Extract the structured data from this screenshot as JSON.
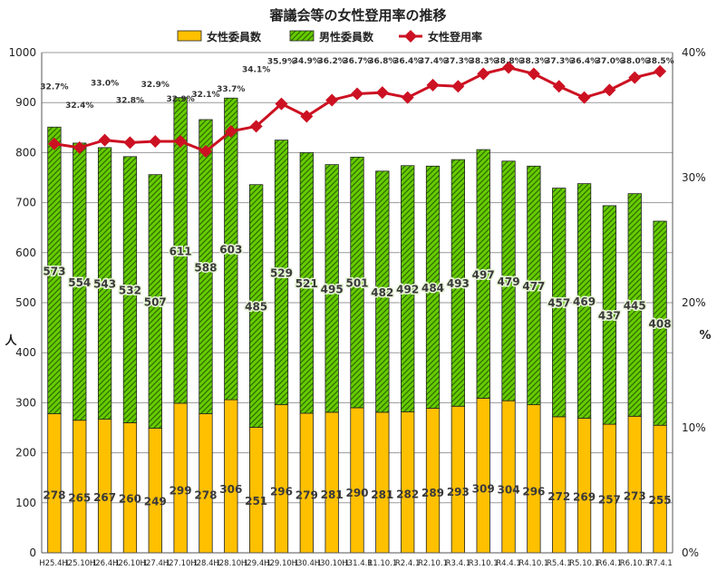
{
  "chart_data": {
    "type": "bar",
    "title": "審議会等の女性登用率の推移",
    "ylabel_left": "人",
    "ylabel_right": "%",
    "ylim_left": [
      0,
      1000
    ],
    "ylim_right": [
      0,
      40
    ],
    "yticks_left": [
      "0",
      "100",
      "200",
      "300",
      "400",
      "500",
      "600",
      "700",
      "800",
      "900",
      "1000"
    ],
    "yticks_right": [
      "0%",
      "10%",
      "20%",
      "30%",
      "40%"
    ],
    "grid": true,
    "stacked": true,
    "legend_position": "top",
    "categories": [
      "H25.4.1",
      "H25.10.1",
      "H26.4.1",
      "H26.10.1",
      "H27.4.1",
      "H27.10.1",
      "H28.4.1",
      "H28.10.1",
      "H29.4.1",
      "H29.10.1",
      "H30.4.1",
      "H30.10.1",
      "H31.4.1",
      "R1.10.1",
      "R2.4.1",
      "R2.10.1",
      "R3.4.1",
      "R3.10.1",
      "R4.4.1",
      "R4.10.1",
      "R5.4.1",
      "R5.10.1",
      "R6.4.1",
      "R6.10.1",
      "R7.4.1"
    ],
    "series": [
      {
        "name": "女性委員数",
        "kind": "bar",
        "color": "#FFC000",
        "values": [
          278,
          265,
          267,
          260,
          249,
          299,
          278,
          306,
          251,
          296,
          279,
          281,
          290,
          281,
          282,
          289,
          293,
          309,
          304,
          296,
          272,
          269,
          257,
          273,
          255
        ]
      },
      {
        "name": "男性委員数",
        "kind": "bar",
        "color": "#66CC00",
        "values": [
          573,
          554,
          543,
          532,
          507,
          611,
          588,
          603,
          485,
          529,
          521,
          495,
          501,
          482,
          492,
          484,
          493,
          497,
          479,
          477,
          457,
          469,
          437,
          445,
          408
        ]
      },
      {
        "name": "女性登用率",
        "kind": "line",
        "color": "#CC1122",
        "values": [
          32.7,
          32.4,
          33.0,
          32.8,
          32.9,
          32.9,
          32.1,
          33.7,
          34.1,
          35.9,
          34.9,
          36.2,
          36.7,
          36.8,
          36.4,
          37.4,
          37.3,
          38.3,
          38.8,
          38.3,
          37.3,
          36.4,
          37.0,
          38.0,
          38.5
        ],
        "labels": [
          "32.7%",
          "32.4%",
          "33.0%",
          "32.8%",
          "32.9%",
          "32.9%",
          "32.1%",
          "33.7%",
          "34.1%",
          "35.9%",
          "34.9%",
          "36.2%",
          "36.7%",
          "36.8%",
          "36.4%",
          "37.4%",
          "37.3%",
          "38.3%",
          "38.8%",
          "38.3%",
          "37.3%",
          "36.4%",
          "37.0%",
          "38.0%",
          "38.5%"
        ]
      }
    ]
  }
}
